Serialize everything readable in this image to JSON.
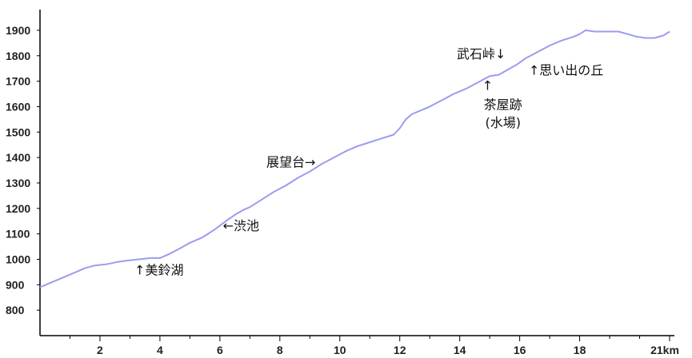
{
  "chart_data": {
    "type": "line",
    "title": "",
    "xlabel": "",
    "ylabel": "",
    "xlim": [
      0,
      21
    ],
    "ylim": [
      700,
      1950
    ],
    "x_ticks": [
      2,
      4,
      6,
      8,
      10,
      12,
      14,
      16,
      18,
      21
    ],
    "x_tick_labels": [
      "2",
      "4",
      "6",
      "8",
      "10",
      "12",
      "14",
      "16",
      "18",
      "21km"
    ],
    "y_ticks": [
      800,
      900,
      1000,
      1100,
      1200,
      1300,
      1400,
      1500,
      1600,
      1700,
      1800,
      1900
    ],
    "y_tick_labels": [
      "800",
      "900",
      "1000",
      "1100",
      "1200",
      "1300",
      "1400",
      "1500",
      "1600",
      "1700",
      "1800",
      "1900"
    ],
    "series": [
      {
        "name": "",
        "color": "#9b9bf0",
        "x": [
          0,
          0.3,
          0.8,
          1.2,
          1.5,
          1.8,
          2.2,
          2.6,
          2.9,
          3.3,
          3.7,
          4.0,
          4.3,
          4.7,
          5.0,
          5.4,
          5.8,
          6.2,
          6.5,
          6.8,
          7.0,
          7.4,
          7.8,
          8.2,
          8.6,
          9.0,
          9.4,
          9.8,
          10.2,
          10.6,
          11.0,
          11.4,
          11.8,
          12.0,
          12.2,
          12.4,
          12.7,
          13.0,
          13.4,
          13.8,
          14.2,
          14.6,
          15.0,
          15.3,
          15.6,
          15.9,
          16.2,
          16.6,
          17.0,
          17.4,
          17.8,
          18.0,
          18.2,
          18.5,
          18.9,
          19.3,
          19.6,
          19.9,
          20.2,
          20.5,
          20.8,
          21.0
        ],
        "y": [
          890,
          905,
          930,
          950,
          965,
          975,
          980,
          990,
          995,
          1000,
          1005,
          1005,
          1020,
          1045,
          1065,
          1085,
          1115,
          1150,
          1175,
          1195,
          1205,
          1235,
          1265,
          1290,
          1320,
          1345,
          1375,
          1400,
          1425,
          1445,
          1460,
          1475,
          1490,
          1515,
          1550,
          1570,
          1585,
          1600,
          1625,
          1650,
          1670,
          1695,
          1720,
          1725,
          1745,
          1765,
          1790,
          1815,
          1840,
          1860,
          1875,
          1885,
          1900,
          1895,
          1895,
          1895,
          1885,
          1875,
          1870,
          1870,
          1880,
          1895
        ]
      }
    ],
    "annotations": [
      {
        "text": "↑美鈴湖",
        "x": 3.15,
        "y": 940
      },
      {
        "text": "←渋池",
        "x": 6.1,
        "y": 1115
      },
      {
        "text": "展望台→",
        "x": 7.55,
        "y": 1365
      },
      {
        "text": "武石峠↓",
        "x": 13.9,
        "y": 1790
      },
      {
        "text": "↑",
        "x": 14.75,
        "y": 1665
      },
      {
        "text": "茶屋跡",
        "x": 14.8,
        "y": 1590
      },
      {
        "text": "(水場)",
        "x": 14.85,
        "y": 1520
      },
      {
        "text": "↑思い出の丘",
        "x": 16.3,
        "y": 1725
      }
    ],
    "grid": false,
    "legend": "none"
  }
}
